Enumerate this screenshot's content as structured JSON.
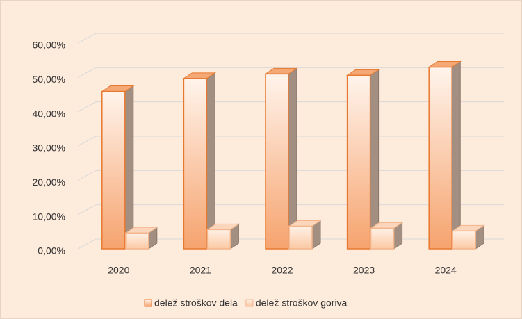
{
  "chart_data": {
    "type": "bar3d",
    "categories": [
      "2020",
      "2021",
      "2022",
      "2023",
      "2024"
    ],
    "series": [
      {
        "name": "delež stroškov dela",
        "color": "#f19a62",
        "values": [
          45.9,
          49.7,
          51.0,
          50.6,
          53.0
        ]
      },
      {
        "name": "delež stroškov goriva",
        "color": "#fbc9a4",
        "values": [
          4.6,
          5.6,
          6.6,
          6.0,
          5.2
        ]
      }
    ],
    "ylim": [
      0,
      60
    ],
    "yticks": [
      {
        "value": 0,
        "label": "0,00%"
      },
      {
        "value": 10,
        "label": "10,00%"
      },
      {
        "value": 20,
        "label": "20,00%"
      },
      {
        "value": 30,
        "label": "30,00%"
      },
      {
        "value": 40,
        "label": "40,00%"
      },
      {
        "value": 50,
        "label": "50,00%"
      },
      {
        "value": 60,
        "label": "60,00%"
      }
    ],
    "grid": true,
    "legend": "bottom"
  }
}
